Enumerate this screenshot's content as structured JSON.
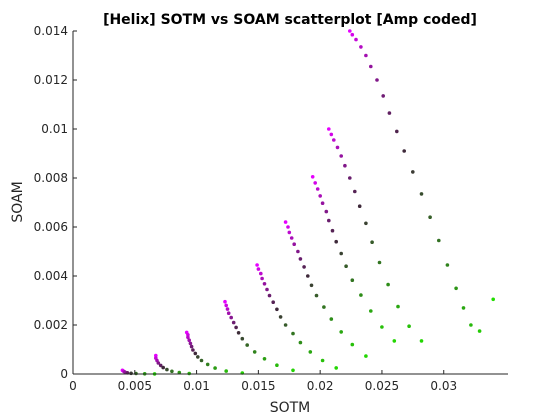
{
  "chart_data": {
    "type": "scatter",
    "title": "[Helix] SOTM vs SOAM scatterplot [Amp coded]",
    "xlabel": "SOTM",
    "ylabel": "SOAM",
    "xlim": [
      0,
      0.0352
    ],
    "ylim": [
      0,
      0.014
    ],
    "xticks": [
      0,
      0.005,
      0.01,
      0.015,
      0.02,
      0.025,
      0.03
    ],
    "xtick_labels": [
      "0",
      "0.005",
      "0.01",
      "0.015",
      "0.02",
      "0.025",
      "0.03"
    ],
    "yticks": [
      0,
      0.002,
      0.004,
      0.006,
      0.008,
      0.01,
      0.012,
      0.014
    ],
    "ytick_labels": [
      "0",
      "0.002",
      "0.004",
      "0.006",
      "0.008",
      "0.01",
      "0.012",
      "0.014"
    ],
    "grid": false,
    "box": "left-bottom",
    "color_scale": {
      "high": "#e600ff",
      "low": "#22dd00",
      "encodes": "amplitude"
    },
    "series": [
      {
        "points": [
          [
            0.004,
            0.00015,
            1.0
          ],
          [
            0.0041,
            0.00011,
            0.9
          ],
          [
            0.0042,
            8e-05,
            0.75
          ],
          [
            0.0044,
            5e-05,
            0.6
          ],
          [
            0.0047,
            3e-05,
            0.45
          ],
          [
            0.0051,
            2e-05,
            0.3
          ],
          [
            0.0058,
            1e-05,
            0.15
          ],
          [
            0.0066,
            5e-06,
            0.0
          ]
        ]
      },
      {
        "points": [
          [
            0.0067,
            0.00075,
            1.0
          ],
          [
            0.0067,
            0.00065,
            0.9
          ],
          [
            0.0068,
            0.00055,
            0.8
          ],
          [
            0.0069,
            0.00045,
            0.7
          ],
          [
            0.0071,
            0.00035,
            0.6
          ],
          [
            0.0073,
            0.00026,
            0.5
          ],
          [
            0.0076,
            0.00018,
            0.4
          ],
          [
            0.008,
            0.00011,
            0.3
          ],
          [
            0.0086,
            6e-05,
            0.2
          ],
          [
            0.0094,
            2e-05,
            0.1
          ]
        ]
      },
      {
        "points": [
          [
            0.0092,
            0.0017,
            1.0
          ],
          [
            0.0093,
            0.0016,
            0.93
          ],
          [
            0.0093,
            0.0015,
            0.86
          ],
          [
            0.0094,
            0.00138,
            0.79
          ],
          [
            0.0095,
            0.00125,
            0.72
          ],
          [
            0.0096,
            0.00112,
            0.65
          ],
          [
            0.0097,
            0.00098,
            0.58
          ],
          [
            0.0099,
            0.00084,
            0.5
          ],
          [
            0.0101,
            0.0007,
            0.42
          ],
          [
            0.0104,
            0.00055,
            0.34
          ],
          [
            0.0109,
            0.00039,
            0.26
          ],
          [
            0.0115,
            0.00024,
            0.18
          ],
          [
            0.0124,
            0.00012,
            0.1
          ],
          [
            0.0137,
            4e-05,
            0.03
          ]
        ]
      },
      {
        "points": [
          [
            0.0123,
            0.00295,
            1.0
          ],
          [
            0.0124,
            0.0028,
            0.93
          ],
          [
            0.0125,
            0.00265,
            0.86
          ],
          [
            0.0126,
            0.00248,
            0.79
          ],
          [
            0.0128,
            0.0023,
            0.72
          ],
          [
            0.013,
            0.0021,
            0.64
          ],
          [
            0.0132,
            0.0019,
            0.56
          ],
          [
            0.0134,
            0.00168,
            0.49
          ],
          [
            0.0137,
            0.00144,
            0.41
          ],
          [
            0.0141,
            0.00118,
            0.33
          ],
          [
            0.0147,
            0.0009,
            0.25
          ],
          [
            0.0155,
            0.00062,
            0.17
          ],
          [
            0.0165,
            0.00036,
            0.1
          ],
          [
            0.0178,
            0.00015,
            0.03
          ]
        ]
      },
      {
        "points": [
          [
            0.0149,
            0.00445,
            1.0
          ],
          [
            0.015,
            0.00428,
            0.94
          ],
          [
            0.0152,
            0.0041,
            0.88
          ],
          [
            0.0153,
            0.0039,
            0.82
          ],
          [
            0.0155,
            0.00368,
            0.76
          ],
          [
            0.0157,
            0.00345,
            0.7
          ],
          [
            0.0159,
            0.0032,
            0.63
          ],
          [
            0.0162,
            0.00293,
            0.57
          ],
          [
            0.0165,
            0.00264,
            0.5
          ],
          [
            0.0168,
            0.00233,
            0.43
          ],
          [
            0.0172,
            0.002,
            0.36
          ],
          [
            0.0178,
            0.00165,
            0.29
          ],
          [
            0.0184,
            0.00128,
            0.22
          ],
          [
            0.0192,
            0.0009,
            0.15
          ],
          [
            0.0202,
            0.00055,
            0.08
          ],
          [
            0.0213,
            0.00025,
            0.02
          ]
        ]
      },
      {
        "points": [
          [
            0.0172,
            0.0062,
            1.0
          ],
          [
            0.0174,
            0.006,
            0.94
          ],
          [
            0.0175,
            0.00578,
            0.88
          ],
          [
            0.0177,
            0.00555,
            0.82
          ],
          [
            0.0179,
            0.0053,
            0.76
          ],
          [
            0.0182,
            0.005,
            0.7
          ],
          [
            0.0184,
            0.0047,
            0.63
          ],
          [
            0.0187,
            0.00437,
            0.57
          ],
          [
            0.019,
            0.004,
            0.5
          ],
          [
            0.0193,
            0.00362,
            0.43
          ],
          [
            0.0197,
            0.0032,
            0.36
          ],
          [
            0.0203,
            0.00273,
            0.29
          ],
          [
            0.0209,
            0.00224,
            0.22
          ],
          [
            0.0217,
            0.00172,
            0.15
          ],
          [
            0.0226,
            0.0012,
            0.08
          ],
          [
            0.0237,
            0.00073,
            0.02
          ]
        ]
      },
      {
        "points": [
          [
            0.0194,
            0.00805,
            1.0
          ],
          [
            0.0196,
            0.0078,
            0.94
          ],
          [
            0.0198,
            0.00755,
            0.88
          ],
          [
            0.02,
            0.00727,
            0.82
          ],
          [
            0.0202,
            0.00697,
            0.76
          ],
          [
            0.0205,
            0.00663,
            0.7
          ],
          [
            0.0207,
            0.00626,
            0.63
          ],
          [
            0.021,
            0.00585,
            0.57
          ],
          [
            0.0213,
            0.0054,
            0.5
          ],
          [
            0.0217,
            0.00492,
            0.43
          ],
          [
            0.0221,
            0.0044,
            0.36
          ],
          [
            0.0226,
            0.00383,
            0.29
          ],
          [
            0.0233,
            0.00322,
            0.22
          ],
          [
            0.0241,
            0.00257,
            0.15
          ],
          [
            0.025,
            0.00192,
            0.08
          ],
          [
            0.026,
            0.00135,
            0.02
          ]
        ]
      },
      {
        "points": [
          [
            0.0207,
            0.01,
            1.0
          ],
          [
            0.0209,
            0.00978,
            0.94
          ],
          [
            0.0211,
            0.00955,
            0.88
          ],
          [
            0.0214,
            0.00925,
            0.82
          ],
          [
            0.0217,
            0.0089,
            0.76
          ],
          [
            0.022,
            0.0085,
            0.7
          ],
          [
            0.0224,
            0.008,
            0.63
          ],
          [
            0.0228,
            0.00745,
            0.57
          ],
          [
            0.0232,
            0.00685,
            0.5
          ],
          [
            0.0237,
            0.00615,
            0.43
          ],
          [
            0.0242,
            0.00538,
            0.36
          ],
          [
            0.0248,
            0.00455,
            0.29
          ],
          [
            0.0255,
            0.00365,
            0.22
          ],
          [
            0.0263,
            0.00275,
            0.15
          ],
          [
            0.0272,
            0.00195,
            0.08
          ],
          [
            0.0282,
            0.00135,
            0.02
          ]
        ]
      },
      {
        "points": [
          [
            0.0224,
            0.014,
            1.0
          ],
          [
            0.0226,
            0.01385,
            0.95
          ],
          [
            0.0229,
            0.01365,
            0.9
          ],
          [
            0.0233,
            0.01335,
            0.85
          ],
          [
            0.0237,
            0.013,
            0.8
          ],
          [
            0.0241,
            0.01255,
            0.75
          ],
          [
            0.0246,
            0.012,
            0.7
          ],
          [
            0.0251,
            0.01135,
            0.65
          ],
          [
            0.0256,
            0.01065,
            0.6
          ],
          [
            0.0262,
            0.0099,
            0.55
          ],
          [
            0.0268,
            0.0091,
            0.5
          ],
          [
            0.0275,
            0.00825,
            0.45
          ],
          [
            0.0282,
            0.00735,
            0.4
          ],
          [
            0.0289,
            0.0064,
            0.35
          ],
          [
            0.0296,
            0.00545,
            0.3
          ],
          [
            0.0303,
            0.00445,
            0.25
          ],
          [
            0.031,
            0.0035,
            0.2
          ],
          [
            0.0316,
            0.0027,
            0.15
          ],
          [
            0.0322,
            0.002,
            0.1
          ],
          [
            0.0329,
            0.00175,
            0.05
          ],
          [
            0.034,
            0.00305,
            0.0
          ]
        ]
      }
    ]
  }
}
